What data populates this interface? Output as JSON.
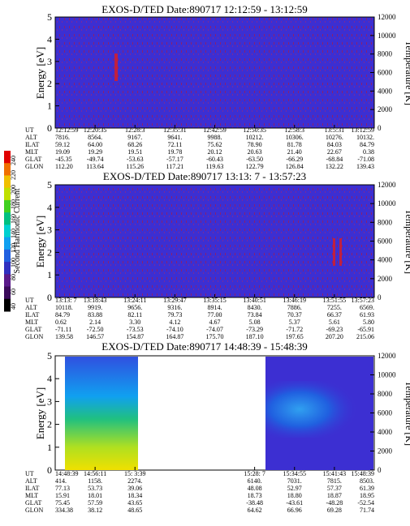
{
  "colorbar": {
    "label": "Second Harmonic Current",
    "ticks": [
      "40",
      "60",
      "80",
      "100",
      "120",
      "140",
      "160",
      "180",
      "200",
      "220",
      "240"
    ],
    "colors": [
      "#000000",
      "#3a0a5a",
      "#5a1a8a",
      "#3030c0",
      "#2060e0",
      "#10a0f0",
      "#00d0d0",
      "#00c080",
      "#40d020",
      "#c0e000",
      "#f0c000",
      "#f07000",
      "#e00000"
    ]
  },
  "row_labels": [
    "UT",
    "ALT",
    "ILAT",
    "MLT",
    "GLAT",
    "GLON"
  ],
  "axis": {
    "ylabel_left": "Energy [eV]",
    "ylabel_right": "Temperature [K]",
    "yticks_left": [
      "0",
      "1",
      "2",
      "3",
      "4",
      "5"
    ],
    "yticks_right": [
      "0",
      "2000",
      "4000",
      "6000",
      "8000",
      "10000",
      "12000"
    ]
  },
  "panels": [
    {
      "title": "EXOS-D/TED   Date:890717   12:12:59 - 13:12:59",
      "table": [
        [
          "12:12:59",
          "12:20:35",
          "12:28:3",
          "12:35:31",
          "12:42:59",
          "12:50:35",
          "12:58:3",
          "13:5:31",
          "13:12:59"
        ],
        [
          "7816.",
          "8564.",
          "9167.",
          "9641.",
          "9988.",
          "10212.",
          "10306.",
          "10276.",
          "10132."
        ],
        [
          "59.12",
          "64.00",
          "68.26",
          "72.11",
          "75.62",
          "78.90",
          "81.78",
          "84.03",
          "84.79"
        ],
        [
          "19.09",
          "19.29",
          "19.51",
          "19.78",
          "20.12",
          "20.63",
          "21.40",
          "22.67",
          "0.38"
        ],
        [
          "-45.35",
          "-49.74",
          "-53.63",
          "-57.17",
          "-60.43",
          "-63.50",
          "-66.29",
          "-68.84",
          "-71.08"
        ],
        [
          "112.20",
          "113.64",
          "115.26",
          "117.21",
          "119.63",
          "122.79",
          "126.84",
          "132.22",
          "139.43"
        ]
      ]
    },
    {
      "title": "EXOS-D/TED   Date:890717   13:13: 7 - 13:57:23",
      "table": [
        [
          "13:13: 7",
          "13:18:43",
          "13:24:11",
          "13:29:47",
          "13:35:15",
          "13:40:51",
          "13:46:19",
          "13:51:55",
          "13:57:23"
        ],
        [
          "10118.",
          "9919.",
          "9656.",
          "9316.",
          "8914.",
          "8430.",
          "7886.",
          "7255.",
          "6569."
        ],
        [
          "84.79",
          "83.88",
          "82.11",
          "79.73",
          "77.00",
          "73.84",
          "70.37",
          "66.37",
          "61.93"
        ],
        [
          "0.62",
          "2.14",
          "3.30",
          "4.12",
          "4.67",
          "5.08",
          "5.37",
          "5.61",
          "5.80"
        ],
        [
          "-71.11",
          "-72.50",
          "-73.53",
          "-74.10",
          "-74.07",
          "-73.29",
          "-71.72",
          "-69.23",
          "-65.91"
        ],
        [
          "139.58",
          "146.57",
          "154.87",
          "164.87",
          "175.70",
          "187.10",
          "197.65",
          "207.20",
          "215.06"
        ]
      ]
    },
    {
      "title": "EXOS-D/TED   Date:890717   14:48:39 - 15:48:39",
      "table": [
        [
          "14:48:39",
          "14:56:11",
          "15: 3:39",
          "",
          "",
          "15:28: 7",
          "15:34:55",
          "15:41:43",
          "15:48:39"
        ],
        [
          "414.",
          "1158.",
          "2274.",
          "",
          "",
          "6140.",
          "7031.",
          "7815.",
          "8503."
        ],
        [
          "77.13",
          "53.73",
          "39.06",
          "",
          "",
          "48.08",
          "52.97",
          "57.37",
          "61.39"
        ],
        [
          "15.91",
          "18.01",
          "18.34",
          "",
          "",
          "18.73",
          "18.80",
          "18.87",
          "18.95"
        ],
        [
          "75.45",
          "57.59",
          "43.65",
          "",
          "",
          "-38.48",
          "-43.61",
          "-48.28",
          "-52.54"
        ],
        [
          "334.38",
          "38.12",
          "48.65",
          "",
          "",
          "64.62",
          "66.96",
          "69.28",
          "71.74"
        ]
      ]
    }
  ],
  "chart_data": [
    {
      "type": "heatmap",
      "title": "EXOS-D/TED   Date:890717   12:12:59 - 13:12:59",
      "ylabel": "Energy [eV]",
      "ylabel_right": "Temperature [K]",
      "ylim": [
        0,
        5
      ],
      "ylim_right": [
        0,
        12000
      ],
      "x_ticks": [
        "12:12:59",
        "12:20:35",
        "12:28:3",
        "12:35:31",
        "12:42:59",
        "12:50:35",
        "12:58:3",
        "13:5:31",
        "13:12:59"
      ],
      "background_level": "low (blue) across all times",
      "features": [
        {
          "type": "vertical_streak",
          "time": "12:21:40",
          "energy_range": [
            2.2,
            3.4
          ]
        }
      ]
    },
    {
      "type": "heatmap",
      "title": "EXOS-D/TED   Date:890717   13:13: 7 - 13:57:23",
      "ylabel": "Energy [eV]",
      "ylabel_right": "Temperature [K]",
      "ylim": [
        0,
        5
      ],
      "ylim_right": [
        0,
        12000
      ],
      "x_ticks": [
        "13:13: 7",
        "13:18:43",
        "13:24:11",
        "13:29:47",
        "13:35:15",
        "13:40:51",
        "13:46:19",
        "13:51:55",
        "13:57:23"
      ],
      "background_level": "low (blue) across all times",
      "features": [
        {
          "type": "vertical_streak",
          "time": "13:54:00",
          "energy_range": [
            1.5,
            2.8
          ]
        }
      ]
    },
    {
      "type": "heatmap",
      "title": "EXOS-D/TED   Date:890717   14:48:39 - 15:48:39",
      "ylabel": "Energy [eV]",
      "ylabel_right": "Temperature [K]",
      "ylim": [
        0,
        5
      ],
      "ylim_right": [
        0,
        12000
      ],
      "x_ticks": [
        "14:48:39",
        "14:56:11",
        "15: 3:39",
        "",
        "",
        "15:28: 7",
        "15:34:55",
        "15:41:43",
        "15:48:39"
      ],
      "data_gaps": [
        [
          "15:08:00",
          "15:26:30"
        ]
      ],
      "features": [
        {
          "type": "band",
          "time_range": [
            "14:48:39",
            "15:06:00"
          ],
          "energy_range": [
            0,
            5
          ],
          "level": "high (green-yellow) below 2.5 eV, cyan above"
        },
        {
          "type": "band",
          "time_range": [
            "15:26:30",
            "15:48:39"
          ],
          "energy_range": [
            2.3,
            3.3
          ],
          "level": "medium (blue-cyan) centered near 2.8 eV"
        }
      ]
    }
  ]
}
